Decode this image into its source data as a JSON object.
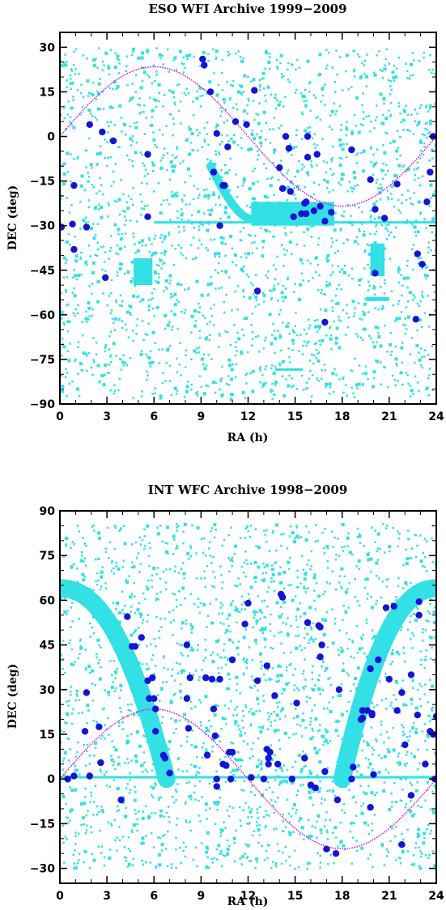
{
  "colors": {
    "footprint": "#33e0e6",
    "ecliptic": "#e000e0",
    "target": "#1414d6",
    "axis": "#000000"
  },
  "chart_data": [
    {
      "type": "scatter",
      "title": "ESO WFI Archive 1999−2009",
      "xlabel": "RA (h)",
      "ylabel": "DEC (deg)",
      "xlim": [
        0,
        24
      ],
      "ylim": [
        -90,
        35
      ],
      "xticks": [
        0,
        3,
        6,
        9,
        12,
        15,
        18,
        21,
        24
      ],
      "xtick_labels": [
        "0",
        "3",
        "6",
        "9",
        "12",
        "15",
        "18",
        "21",
        "24"
      ],
      "yticks": [
        -90,
        -75,
        -60,
        -45,
        -30,
        -15,
        0,
        15,
        30
      ],
      "ytick_labels": [
        "−90",
        "−75",
        "−60",
        "−45",
        "−30",
        "−15",
        "0",
        "15",
        "30"
      ],
      "series": [
        {
          "marker": "large-dot",
          "points": [
            [
              0.1,
              -30.5
            ],
            [
              0.8,
              -29.5
            ],
            [
              0.9,
              -16.5
            ],
            [
              0.9,
              -38
            ],
            [
              1.7,
              -30.5
            ],
            [
              1.9,
              4
            ],
            [
              2.7,
              1.5
            ],
            [
              2.9,
              -47.5
            ],
            [
              3.4,
              -1.5
            ],
            [
              5.6,
              -27
            ],
            [
              5.6,
              -6
            ],
            [
              9.1,
              26
            ],
            [
              9.2,
              24
            ],
            [
              9.6,
              15
            ],
            [
              9.8,
              -12
            ],
            [
              10.0,
              1
            ],
            [
              10.2,
              -30
            ],
            [
              10.4,
              -16.5
            ],
            [
              10.5,
              -16.5
            ],
            [
              10.7,
              -3.5
            ],
            [
              11.2,
              5
            ],
            [
              11.9,
              4
            ],
            [
              12.4,
              15.5
            ],
            [
              12.6,
              -52
            ],
            [
              14.0,
              -10.5
            ],
            [
              14.2,
              -17.5
            ],
            [
              14.4,
              0
            ],
            [
              14.6,
              -4
            ],
            [
              14.7,
              -18.5
            ],
            [
              14.9,
              -27
            ],
            [
              15.4,
              -26
            ],
            [
              15.7,
              -22
            ],
            [
              15.6,
              -22.5
            ],
            [
              15.7,
              -26
            ],
            [
              15.8,
              -7
            ],
            [
              15.8,
              0
            ],
            [
              16.2,
              -25
            ],
            [
              16.4,
              -6
            ],
            [
              16.6,
              -23.5
            ],
            [
              16.9,
              -28.5
            ],
            [
              16.9,
              -62.5
            ],
            [
              17.3,
              -25.5
            ],
            [
              18.6,
              -4.5
            ],
            [
              19.8,
              -14.5
            ],
            [
              20.1,
              -24.5
            ],
            [
              20.1,
              -46
            ],
            [
              20.7,
              -27.5
            ],
            [
              21.5,
              -16
            ],
            [
              22.7,
              -61.5
            ],
            [
              22.8,
              -39.5
            ],
            [
              23.1,
              -43
            ],
            [
              23.4,
              -22
            ],
            [
              23.6,
              -12
            ],
            [
              23.8,
              0
            ]
          ]
        }
      ],
      "ecliptic": true
    },
    {
      "type": "scatter",
      "title": "INT WFC Archive 1998−2009",
      "xlabel": "RA (h)",
      "ylabel": "DEC (deg)",
      "xlim": [
        0,
        24
      ],
      "ylim": [
        -35,
        90
      ],
      "xticks": [
        0,
        3,
        6,
        9,
        12,
        15,
        18,
        21,
        24
      ],
      "xtick_labels": [
        "0",
        "3",
        "6",
        "9",
        "12",
        "15",
        "18",
        "21",
        "24"
      ],
      "yticks": [
        -30,
        -15,
        0,
        15,
        30,
        45,
        60,
        75,
        90
      ],
      "ytick_labels": [
        "−30",
        "−15",
        "0",
        "15",
        "30",
        "45",
        "60",
        "75",
        "90"
      ],
      "series": [
        {
          "marker": "large-dot",
          "points": [
            [
              0.5,
              0
            ],
            [
              0.9,
              1
            ],
            [
              1.6,
              16
            ],
            [
              1.7,
              29
            ],
            [
              1.9,
              1
            ],
            [
              2.5,
              17.5
            ],
            [
              2.6,
              5.5
            ],
            [
              3.9,
              -7
            ],
            [
              4.3,
              54.5
            ],
            [
              4.6,
              44.5
            ],
            [
              4.8,
              44.5
            ],
            [
              5.2,
              47.5
            ],
            [
              5.6,
              33
            ],
            [
              5.7,
              27
            ],
            [
              5.9,
              34
            ],
            [
              6.0,
              27
            ],
            [
              6.1,
              23.5
            ],
            [
              6.1,
              16
            ],
            [
              6.6,
              8
            ],
            [
              6.7,
              7
            ],
            [
              7.0,
              2
            ],
            [
              8.1,
              45
            ],
            [
              8.1,
              27
            ],
            [
              8.2,
              17
            ],
            [
              8.3,
              34
            ],
            [
              9.3,
              34
            ],
            [
              9.4,
              8
            ],
            [
              9.7,
              33.5
            ],
            [
              9.8,
              23.5
            ],
            [
              9.9,
              14.5
            ],
            [
              10.0,
              -2.5
            ],
            [
              10.0,
              0
            ],
            [
              10.2,
              33.5
            ],
            [
              10.4,
              5
            ],
            [
              10.6,
              4.5
            ],
            [
              10.8,
              9
            ],
            [
              10.9,
              0
            ],
            [
              11.0,
              9
            ],
            [
              11.0,
              40
            ],
            [
              11.8,
              52
            ],
            [
              12.0,
              59
            ],
            [
              12.2,
              0.5
            ],
            [
              12.6,
              33
            ],
            [
              13.0,
              0
            ],
            [
              13.2,
              38
            ],
            [
              13.2,
              10
            ],
            [
              13.3,
              7
            ],
            [
              13.3,
              5
            ],
            [
              13.4,
              9
            ],
            [
              13.7,
              28
            ],
            [
              13.9,
              5
            ],
            [
              14.1,
              62
            ],
            [
              14.2,
              61
            ],
            [
              14.8,
              0
            ],
            [
              15.1,
              25.5
            ],
            [
              15.6,
              7
            ],
            [
              15.8,
              52.5
            ],
            [
              16.0,
              -2
            ],
            [
              16.3,
              -3
            ],
            [
              16.5,
              51.5
            ],
            [
              16.6,
              51
            ],
            [
              16.6,
              41
            ],
            [
              16.7,
              45
            ],
            [
              16.9,
              2.5
            ],
            [
              17.0,
              -23.5
            ],
            [
              17.6,
              -25
            ],
            [
              17.7,
              -7
            ],
            [
              17.8,
              30
            ],
            [
              18.6,
              0
            ],
            [
              18.7,
              4
            ],
            [
              19.2,
              20
            ],
            [
              19.3,
              20.5
            ],
            [
              19.3,
              23
            ],
            [
              19.6,
              23
            ],
            [
              19.8,
              37
            ],
            [
              19.8,
              -9.5
            ],
            [
              19.9,
              21.5
            ],
            [
              19.9,
              22
            ],
            [
              20.0,
              1.5
            ],
            [
              20.3,
              40
            ],
            [
              20.8,
              57.5
            ],
            [
              21.0,
              33.5
            ],
            [
              21.3,
              58
            ],
            [
              21.5,
              23
            ],
            [
              21.8,
              -22
            ],
            [
              21.8,
              29
            ],
            [
              22.0,
              11.5
            ],
            [
              22.4,
              35
            ],
            [
              22.4,
              -5.5
            ],
            [
              22.8,
              21.5
            ],
            [
              22.9,
              55
            ],
            [
              22.9,
              59.5
            ],
            [
              23.3,
              5
            ],
            [
              23.6,
              16
            ],
            [
              23.8,
              15
            ],
            [
              23.9,
              0
            ],
            [
              24.0,
              21
            ]
          ]
        }
      ],
      "ecliptic": true
    }
  ]
}
